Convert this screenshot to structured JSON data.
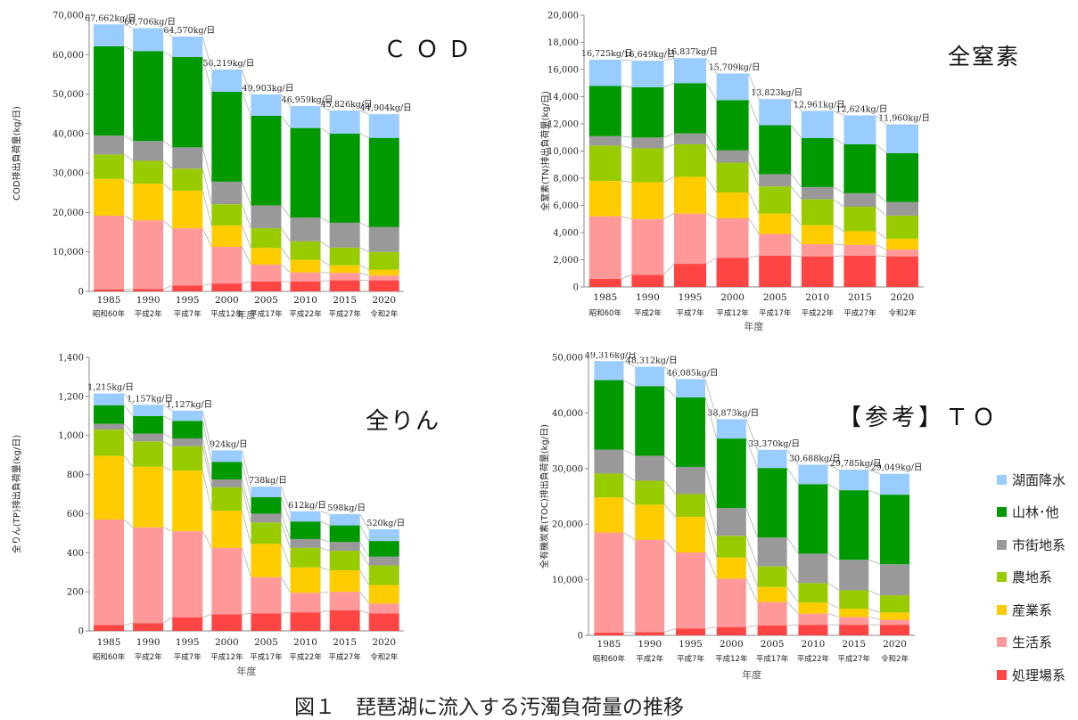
{
  "figure_caption": "図１　琵琶湖に流入する汚濁負荷量の推移",
  "legend": [
    {
      "label": "湖面降水",
      "color": "#99ccff"
    },
    {
      "label": "山林･他",
      "color": "#009900"
    },
    {
      "label": "市街地系",
      "color": "#999999"
    },
    {
      "label": "農地系",
      "color": "#99cc00"
    },
    {
      "label": "産業系",
      "color": "#ffcc00"
    },
    {
      "label": "生活系",
      "color": "#ff9999"
    },
    {
      "label": "処理場系",
      "color": "#ff4444"
    }
  ],
  "chart_data": [
    {
      "type": "bar",
      "stacked": true,
      "title": "ＣＯＤ",
      "ylabel": "COD排出負荷量(kg/日)",
      "xlabel": "年度",
      "ylim": [
        0,
        70000
      ],
      "yticks": [
        0,
        10000,
        20000,
        30000,
        40000,
        50000,
        60000,
        70000
      ],
      "ytick_labels": [
        "0",
        "10,000",
        "20,000",
        "30,000",
        "40,000",
        "50,000",
        "60,000",
        "70,000"
      ],
      "categories": [
        "1985",
        "1990",
        "1995",
        "2000",
        "2005",
        "2010",
        "2015",
        "2020"
      ],
      "category_sublabels": [
        "昭和60年",
        "平成2年",
        "平成7年",
        "平成12年",
        "平成17年",
        "平成22年",
        "平成27年",
        "令和2年"
      ],
      "total_labels": [
        "67,662kg/日",
        "66,706kg/日",
        "64,570kg/日",
        "56,219kg/日",
        "49,903kg/日",
        "46,959kg/日",
        "45,826kg/日",
        "44,904kg/日"
      ],
      "series": [
        {
          "name": "処理場系",
          "values": [
            500,
            600,
            1500,
            2000,
            2500,
            2500,
            2800,
            2800
          ]
        },
        {
          "name": "生活系",
          "values": [
            18700,
            17400,
            14500,
            9300,
            4300,
            2300,
            1900,
            1200
          ]
        },
        {
          "name": "産業系",
          "values": [
            9300,
            9300,
            9500,
            5400,
            4200,
            3200,
            1900,
            1500
          ]
        },
        {
          "name": "農地系",
          "values": [
            6200,
            5800,
            5600,
            5400,
            5000,
            4700,
            4500,
            4500
          ]
        },
        {
          "name": "市街地系",
          "values": [
            4800,
            5000,
            5400,
            5700,
            5800,
            6000,
            6300,
            6300
          ]
        },
        {
          "name": "山林･他",
          "values": [
            22600,
            22800,
            22900,
            22800,
            22700,
            22700,
            22600,
            22600
          ]
        },
        {
          "name": "湖面降水",
          "values": [
            5562,
            5806,
            5170,
            5619,
            5403,
            5559,
            5826,
            6004
          ]
        }
      ]
    },
    {
      "type": "bar",
      "stacked": true,
      "title": "全窒素",
      "ylabel": "全窒素(TN)排出負荷量(kg/日)",
      "xlabel": "年度",
      "ylim": [
        0,
        20000
      ],
      "yticks": [
        0,
        2000,
        4000,
        6000,
        8000,
        10000,
        12000,
        14000,
        16000,
        18000,
        20000
      ],
      "ytick_labels": [
        "0",
        "2,000",
        "4,000",
        "6,000",
        "8,000",
        "10,000",
        "12,000",
        "14,000",
        "16,000",
        "18,000",
        "20,000"
      ],
      "categories": [
        "1985",
        "1990",
        "1995",
        "2000",
        "2005",
        "2010",
        "2015",
        "2020"
      ],
      "category_sublabels": [
        "昭和60年",
        "平成2年",
        "平成7年",
        "平成12年",
        "平成17年",
        "平成22年",
        "平成27年",
        "令和2年"
      ],
      "total_labels": [
        "16,725kg/日",
        "16,649kg/日",
        "16,837kg/日",
        "15,709kg/日",
        "13,823kg/日",
        "12,961kg/日",
        "12,624kg/日",
        "11,960kg/日"
      ],
      "series": [
        {
          "name": "処理場系",
          "values": [
            600,
            900,
            1700,
            2150,
            2300,
            2250,
            2300,
            2250
          ]
        },
        {
          "name": "生活系",
          "values": [
            4600,
            4100,
            3700,
            2900,
            1600,
            900,
            800,
            500
          ]
        },
        {
          "name": "産業系",
          "values": [
            2600,
            2700,
            2700,
            1900,
            1500,
            1400,
            1000,
            800
          ]
        },
        {
          "name": "農地系",
          "values": [
            2600,
            2500,
            2400,
            2200,
            2000,
            1900,
            1800,
            1700
          ]
        },
        {
          "name": "市街地系",
          "values": [
            700,
            800,
            800,
            900,
            900,
            900,
            1000,
            1000
          ]
        },
        {
          "name": "山林･他",
          "values": [
            3700,
            3700,
            3700,
            3700,
            3600,
            3600,
            3600,
            3600
          ]
        },
        {
          "name": "湖面降水",
          "values": [
            1925,
            1949,
            1837,
            1959,
            1923,
            2011,
            2124,
            2110
          ]
        }
      ]
    },
    {
      "type": "bar",
      "stacked": true,
      "title": "全りん",
      "ylabel": "全りん(TP)排出負荷量(kg/日)",
      "xlabel": "年度",
      "ylim": [
        0,
        1400
      ],
      "yticks": [
        0,
        200,
        400,
        600,
        800,
        1000,
        1200,
        1400
      ],
      "ytick_labels": [
        "0",
        "200",
        "400",
        "600",
        "800",
        "1,000",
        "1,200",
        "1,400"
      ],
      "categories": [
        "1985",
        "1990",
        "1995",
        "2000",
        "2005",
        "2010",
        "2015",
        "2020"
      ],
      "category_sublabels": [
        "昭和60年",
        "平成2年",
        "平成7年",
        "平成12年",
        "平成17年",
        "平成22年",
        "平成27年",
        "令和2年"
      ],
      "total_labels": [
        "1,215kg/日",
        "1,157kg/日",
        "1,127kg/日",
        "924kg/日",
        "738kg/日",
        "612kg/日",
        "598kg/日",
        "520kg/日"
      ],
      "series": [
        {
          "name": "処理場系",
          "values": [
            30,
            40,
            70,
            85,
            90,
            95,
            105,
            90
          ]
        },
        {
          "name": "生活系",
          "values": [
            540,
            490,
            440,
            340,
            185,
            100,
            95,
            50
          ]
        },
        {
          "name": "産業系",
          "values": [
            325,
            310,
            310,
            190,
            170,
            130,
            110,
            95
          ]
        },
        {
          "name": "農地系",
          "values": [
            135,
            130,
            125,
            120,
            110,
            100,
            100,
            100
          ]
        },
        {
          "name": "市街地系",
          "values": [
            30,
            40,
            40,
            40,
            45,
            45,
            45,
            45
          ]
        },
        {
          "name": "山林･他",
          "values": [
            95,
            90,
            90,
            90,
            85,
            90,
            85,
            80
          ]
        },
        {
          "name": "湖面降水",
          "values": [
            60,
            57,
            52,
            59,
            53,
            52,
            58,
            60
          ]
        }
      ]
    },
    {
      "type": "bar",
      "stacked": true,
      "title": "【参考】ＴＯＣ",
      "ylabel": "全有機炭素(TOC)排出負荷量(kg/日)",
      "xlabel": "年度",
      "ylim": [
        0,
        50000
      ],
      "yticks": [
        0,
        10000,
        20000,
        30000,
        40000,
        50000
      ],
      "ytick_labels": [
        "0",
        "10,000",
        "20,000",
        "30,000",
        "40,000",
        "50,000"
      ],
      "categories": [
        "1985",
        "1990",
        "1995",
        "2000",
        "2005",
        "2010",
        "2015",
        "2020"
      ],
      "category_sublabels": [
        "昭和60年",
        "平成2年",
        "平成7年",
        "平成12年",
        "平成17年",
        "平成22年",
        "平成27年",
        "令和2年"
      ],
      "total_labels": [
        "49,316kg/日",
        "48,312kg/日",
        "46,085kg/日",
        "38,873kg/日",
        "33,370kg/日",
        "30,688kg/日",
        "29,785kg/日",
        "29,049kg/日"
      ],
      "series": [
        {
          "name": "処理場系",
          "values": [
            500,
            600,
            1200,
            1500,
            1800,
            1900,
            1900,
            1900
          ]
        },
        {
          "name": "生活系",
          "values": [
            18000,
            16600,
            13700,
            8700,
            4200,
            2000,
            1400,
            900
          ]
        },
        {
          "name": "産業系",
          "values": [
            6300,
            6300,
            6400,
            3800,
            2700,
            2000,
            1500,
            1300
          ]
        },
        {
          "name": "農地系",
          "values": [
            4300,
            4300,
            4100,
            3900,
            3700,
            3500,
            3300,
            3100
          ]
        },
        {
          "name": "市街地系",
          "values": [
            4300,
            4500,
            4900,
            5000,
            5200,
            5300,
            5500,
            5600
          ]
        },
        {
          "name": "山林･他",
          "values": [
            12500,
            12500,
            12500,
            12500,
            12500,
            12500,
            12500,
            12500
          ]
        },
        {
          "name": "湖面降水",
          "values": [
            3416,
            3512,
            3285,
            3473,
            3270,
            3488,
            3685,
            3749
          ]
        }
      ]
    }
  ]
}
